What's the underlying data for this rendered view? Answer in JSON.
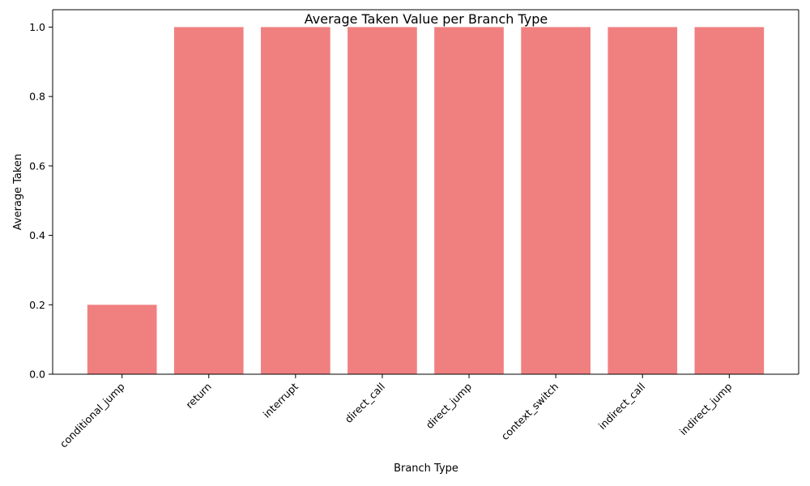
{
  "chart_data": {
    "type": "bar",
    "title": "Average Taken Value per Branch Type",
    "xlabel": "Branch Type",
    "ylabel": "Average Taken",
    "categories": [
      "conditional_jump",
      "return",
      "interrupt",
      "direct_call",
      "direct_jump",
      "context_switch",
      "indirect_call",
      "indirect_jump"
    ],
    "values": [
      0.2,
      1.0,
      1.0,
      1.0,
      1.0,
      1.0,
      1.0,
      1.0
    ],
    "ylim": [
      0,
      1.05
    ],
    "yticks": [
      0.0,
      0.2,
      0.4,
      0.6,
      0.8,
      1.0
    ],
    "ytick_labels": [
      "0.0",
      "0.2",
      "0.4",
      "0.6",
      "0.8",
      "1.0"
    ],
    "bar_color": "#f08080",
    "grid": false,
    "legend": "none"
  }
}
